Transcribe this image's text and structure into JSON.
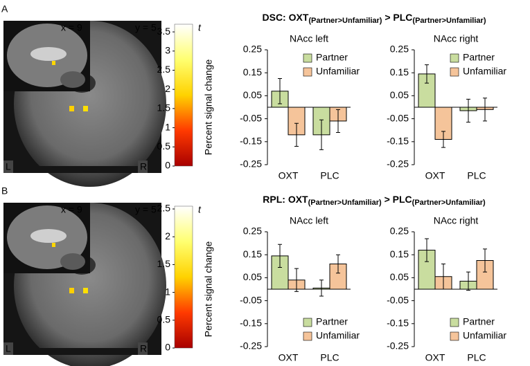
{
  "panels": [
    {
      "label": "A",
      "brain": {
        "x_label": "x = 9",
        "y_label": "y = 5",
        "left": "L",
        "right": "R"
      },
      "title": [
        "DSC: OXT",
        "(Partner>Unfamiliar)",
        " > PLC",
        "(Partner>Unfamiliar)"
      ]
    },
    {
      "label": "B",
      "brain": {
        "x_label": "x = 9",
        "y_label": "y = 5",
        "left": "L",
        "right": "R"
      },
      "title": [
        "RPL: OXT",
        "(Partner>Unfamiliar)",
        " > PLC",
        "(Partner>Unfamiliar)"
      ]
    }
  ],
  "chart_data": [
    {
      "type": "colorbar",
      "label": "t",
      "ylim": [
        0,
        3.7
      ],
      "yticks": [
        0,
        0.5,
        1,
        1.5,
        2,
        2.5,
        3,
        3.5
      ],
      "colors": [
        "#a80000",
        "#ff3a00",
        "#ffd200",
        "#ffff70",
        "#ffffff"
      ]
    },
    {
      "type": "bar",
      "title": "NAcc left",
      "ylabel": "Percent signal change",
      "categories": [
        "OXT",
        "PLC"
      ],
      "series": [
        {
          "name": "Partner",
          "color": "#c9dd9f",
          "values": [
            0.07,
            -0.12
          ],
          "errors": [
            0.055,
            0.065
          ]
        },
        {
          "name": "Unfamiliar",
          "color": "#f5c49a",
          "values": [
            -0.12,
            -0.06
          ],
          "errors": [
            0.05,
            0.05
          ]
        }
      ],
      "ylim": [
        -0.25,
        0.25
      ],
      "yticks": [
        0.25,
        0.15,
        0.05,
        -0.05,
        -0.15,
        -0.25
      ],
      "legend": "upper right"
    },
    {
      "type": "bar",
      "title": "NAcc right",
      "categories": [
        "OXT",
        "PLC"
      ],
      "series": [
        {
          "name": "Partner",
          "color": "#c9dd9f",
          "values": [
            0.145,
            -0.015
          ],
          "errors": [
            0.04,
            0.05
          ]
        },
        {
          "name": "Unfamiliar",
          "color": "#f5c49a",
          "values": [
            -0.14,
            -0.01
          ],
          "errors": [
            0.035,
            0.05
          ]
        }
      ],
      "ylim": [
        -0.25,
        0.25
      ],
      "yticks": [
        0.25,
        0.15,
        0.05,
        -0.05,
        -0.15,
        -0.25
      ],
      "legend": "upper right"
    },
    {
      "type": "colorbar",
      "label": "t",
      "ylim": [
        0,
        2.55
      ],
      "yticks": [
        0,
        0.5,
        1,
        1.5,
        2,
        2.5
      ],
      "colors": [
        "#a80000",
        "#ff3a00",
        "#ffd200",
        "#ffff70",
        "#ffffff"
      ]
    },
    {
      "type": "bar",
      "title": "NAcc left",
      "ylabel": "Percent signal change",
      "categories": [
        "OXT",
        "PLC"
      ],
      "series": [
        {
          "name": "Partner",
          "color": "#c9dd9f",
          "values": [
            0.145,
            0.005
          ],
          "errors": [
            0.05,
            0.035
          ]
        },
        {
          "name": "Unfamiliar",
          "color": "#f5c49a",
          "values": [
            0.04,
            0.11
          ],
          "errors": [
            0.05,
            0.04
          ]
        }
      ],
      "ylim": [
        -0.25,
        0.25
      ],
      "yticks": [
        0.25,
        0.15,
        0.05,
        -0.05,
        -0.15,
        -0.25
      ],
      "legend": "lower right"
    },
    {
      "type": "bar",
      "title": "NAcc right",
      "categories": [
        "OXT",
        "PLC"
      ],
      "series": [
        {
          "name": "Partner",
          "color": "#c9dd9f",
          "values": [
            0.17,
            0.035
          ],
          "errors": [
            0.05,
            0.04
          ]
        },
        {
          "name": "Unfamiliar",
          "color": "#f5c49a",
          "values": [
            0.055,
            0.125
          ],
          "errors": [
            0.055,
            0.05
          ]
        }
      ],
      "ylim": [
        -0.25,
        0.25
      ],
      "yticks": [
        0.25,
        0.15,
        0.05,
        -0.05,
        -0.15,
        -0.25
      ],
      "legend": "lower right"
    }
  ]
}
